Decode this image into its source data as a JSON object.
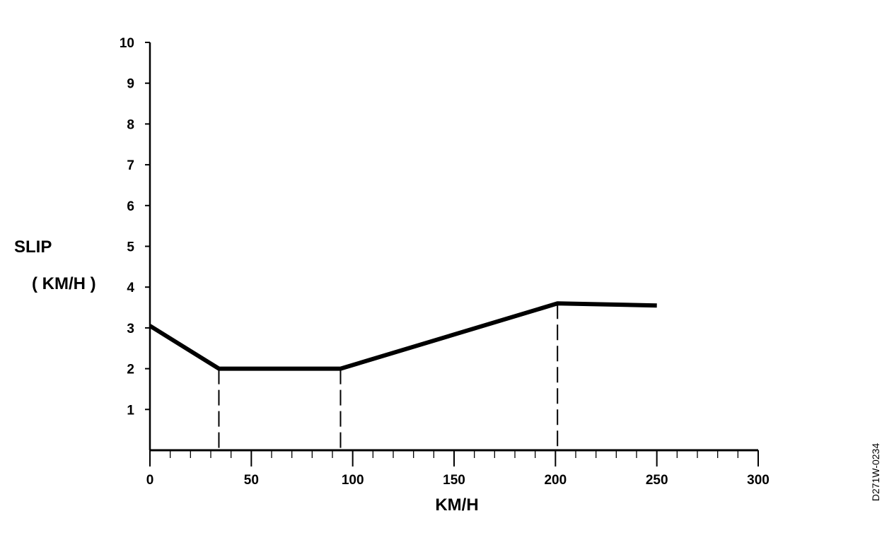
{
  "chart_data": {
    "type": "line",
    "title": "",
    "xlabel": "KM/H",
    "ylabel_line1": "SLIP",
    "ylabel_line2": "( KM/H )",
    "xlim": [
      0,
      300
    ],
    "ylim": [
      0,
      10
    ],
    "x_ticks": [
      0,
      50,
      100,
      150,
      200,
      250,
      300
    ],
    "y_ticks": [
      1,
      2,
      3,
      4,
      5,
      6,
      7,
      8,
      9,
      10
    ],
    "grid": false,
    "series": [
      {
        "x": [
          0,
          34,
          94,
          201,
          250
        ],
        "y": [
          3.05,
          2.0,
          2.0,
          3.6,
          3.55
        ]
      }
    ],
    "reference_lines_x": [
      34,
      94,
      201
    ]
  },
  "figure_ref": "D271W-0234"
}
